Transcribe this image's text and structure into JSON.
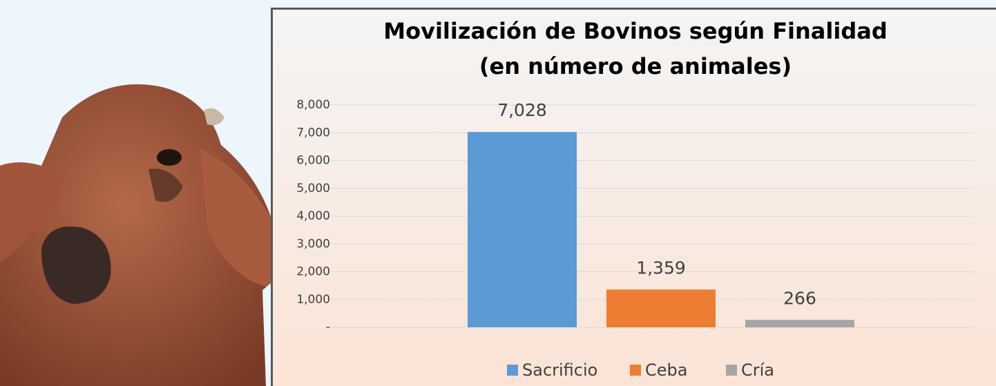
{
  "chart_data": {
    "type": "bar",
    "title": "Movilización de Bovinos según Finalidad",
    "subtitle": "(en número de animales)",
    "series": [
      {
        "name": "Sacrificio",
        "color": "#5b9bd5",
        "values": [
          7028
        ],
        "value_labels": [
          "7,028"
        ]
      },
      {
        "name": "Ceba",
        "color": "#ed7d31",
        "values": [
          1359
        ],
        "value_labels": [
          "1,359"
        ]
      },
      {
        "name": "Cría",
        "color": "#a5a5a5",
        "values": [
          266
        ],
        "value_labels": [
          "266"
        ]
      }
    ],
    "ylim": [
      0,
      8000
    ],
    "yticks": [
      {
        "value": 0,
        "label": "-"
      },
      {
        "value": 1000,
        "label": "1,000"
      },
      {
        "value": 2000,
        "label": "2,000"
      },
      {
        "value": 3000,
        "label": "3,000"
      },
      {
        "value": 4000,
        "label": "4,000"
      },
      {
        "value": 5000,
        "label": "5,000"
      },
      {
        "value": 6000,
        "label": "6,000"
      },
      {
        "value": 7000,
        "label": "7,000"
      },
      {
        "value": 8000,
        "label": "8,000"
      }
    ],
    "grid": true,
    "legend": "bottom"
  }
}
